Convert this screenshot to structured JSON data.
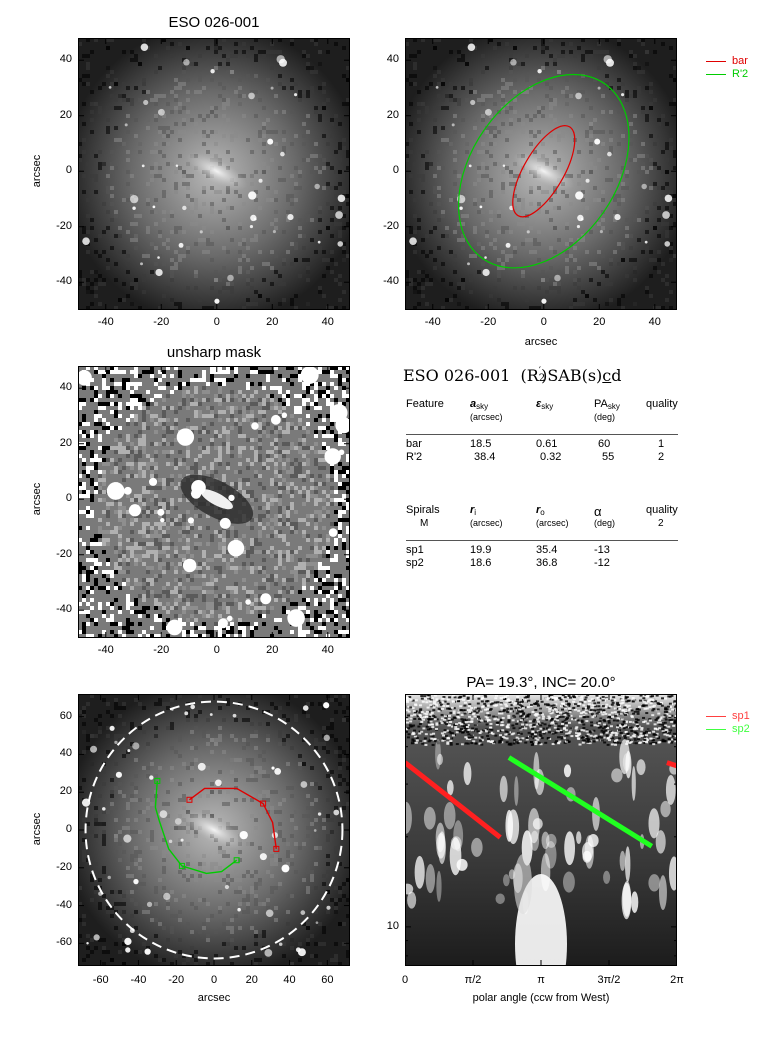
{
  "panel1": {
    "title": "ESO 026-001",
    "ylabel": "arcsec",
    "xticks": [
      "-40",
      "-20",
      "0",
      "20",
      "40"
    ],
    "yticks": [
      "40",
      "20",
      "0",
      "-20",
      "-40"
    ]
  },
  "panel2": {
    "xlabel": "arcsec",
    "xticks": [
      "-40",
      "-20",
      "0",
      "20",
      "40"
    ],
    "yticks": [
      "40",
      "20",
      "0",
      "-20",
      "-40"
    ],
    "legend": [
      {
        "label": "bar",
        "color": "#e00000"
      },
      {
        "label": "R'2",
        "color": "#00cc00"
      }
    ]
  },
  "panel3": {
    "title": "unsharp mask",
    "ylabel": "arcsec",
    "xticks": [
      "-40",
      "-20",
      "0",
      "20",
      "40"
    ],
    "yticks": [
      "40",
      "20",
      "0",
      "-20",
      "-40"
    ]
  },
  "classification": {
    "galaxy": "ESO 026-001",
    "type_open": "(R",
    "type_sub": "2",
    "type_sup": "′",
    "type_rest": ")SAB(s)",
    "type_u": "c",
    "type_end": "d"
  },
  "features_table": {
    "headers": [
      {
        "main": "Feature",
        "unit": ""
      },
      {
        "main": "a",
        "sub": "sky",
        "unit": "(arcsec)"
      },
      {
        "main": "ε",
        "sub": "sky",
        "unit": ""
      },
      {
        "main": "PA",
        "sub": "sky",
        "unit": "(deg)"
      },
      {
        "main": "quality",
        "unit": ""
      }
    ],
    "rows": [
      [
        "bar",
        "18.5",
        "0.61",
        "60",
        "1"
      ],
      [
        "R'2",
        "38.4",
        "0.32",
        "55",
        "2"
      ]
    ]
  },
  "spirals_table": {
    "headers": [
      {
        "main": "Spirals",
        "unit": "M"
      },
      {
        "main": "r",
        "sub": "i",
        "unit": "(arcsec)"
      },
      {
        "main": "r",
        "sub": "o",
        "unit": "(arcsec)"
      },
      {
        "main": "α",
        "unit": "(deg)"
      },
      {
        "main": "quality",
        "unit": "2"
      }
    ],
    "rows": [
      [
        "sp1",
        "19.9",
        "35.4",
        "-13"
      ],
      [
        "sp2",
        "18.6",
        "36.8",
        "-12"
      ]
    ]
  },
  "panel5": {
    "xlabel": "arcsec",
    "ylabel": "arcsec",
    "xticks": [
      "-60",
      "-40",
      "-20",
      "0",
      "20",
      "40",
      "60"
    ],
    "yticks": [
      "60",
      "40",
      "20",
      "0",
      "-20",
      "-40",
      "-60"
    ]
  },
  "panel6": {
    "title": "PA=  19.3°, INC=  20.0°",
    "xlabel": "polar angle (ccw from West)",
    "xticks": [
      "0",
      "π/2",
      "π",
      "3π/2",
      "2π"
    ],
    "yticks": [
      "10"
    ],
    "legend": [
      {
        "label": "sp1",
        "color": "#ff4040"
      },
      {
        "label": "sp2",
        "color": "#40ff40"
      }
    ]
  },
  "chart_data": [
    {
      "type": "scatter",
      "title": "ESO 026-001",
      "xlabel": "",
      "ylabel": "arcsec",
      "xlim": [
        -50,
        48
      ],
      "ylim": [
        -50,
        48
      ],
      "image": "galaxy-deprojected-grayscale"
    },
    {
      "type": "scatter",
      "xlabel": "arcsec",
      "xlim": [
        -50,
        48
      ],
      "ylim": [
        -50,
        48
      ],
      "ellipses": [
        {
          "name": "bar",
          "a": 18.5,
          "ellipticity": 0.61,
          "pa_deg": 60,
          "color": "#e00000"
        },
        {
          "name": "R'2",
          "a": 38.4,
          "ellipticity": 0.32,
          "pa_deg": 55,
          "color": "#00cc00"
        }
      ]
    },
    {
      "type": "scatter",
      "title": "unsharp mask",
      "ylabel": "arcsec",
      "xlim": [
        -50,
        48
      ],
      "ylim": [
        -50,
        48
      ],
      "image": "unsharp-mask-grayscale"
    },
    {
      "type": "line",
      "xlabel": "arcsec",
      "ylabel": "arcsec",
      "xlim": [
        -72,
        72
      ],
      "ylim": [
        -72,
        72
      ],
      "circle_radius": 68,
      "series": [
        {
          "name": "sp1",
          "color": "#e00000",
          "points": [
            [
              -13,
              16
            ],
            [
              -5,
              22
            ],
            [
              12,
              22
            ],
            [
              26,
              14
            ],
            [
              31,
              4
            ],
            [
              33,
              -10
            ]
          ]
        },
        {
          "name": "sp2",
          "color": "#00cc00",
          "points": [
            [
              -30,
              26
            ],
            [
              -31,
              12
            ],
            [
              -29,
              5
            ],
            [
              -24,
              -10
            ],
            [
              -17,
              -19
            ],
            [
              -4,
              -23
            ],
            [
              4,
              -22
            ],
            [
              12,
              -16
            ]
          ]
        }
      ]
    },
    {
      "type": "line",
      "title": "PA=  19.3°, INC=  20.0°",
      "xlabel": "polar angle (ccw from West)",
      "xlim": [
        0,
        6.2832
      ],
      "yscale": "log",
      "series": [
        {
          "name": "sp1",
          "color": "#ff2020",
          "points": [
            [
              0,
              35.4
            ],
            [
              2.2,
              19.9
            ]
          ]
        },
        {
          "name": "sp1",
          "color": "#ff2020",
          "points": [
            [
              6.05,
              35.4
            ],
            [
              6.2832,
              34.5
            ]
          ]
        },
        {
          "name": "sp2",
          "color": "#20ff20",
          "points": [
            [
              2.4,
              36.8
            ],
            [
              5.7,
              18.6
            ]
          ]
        }
      ]
    }
  ]
}
